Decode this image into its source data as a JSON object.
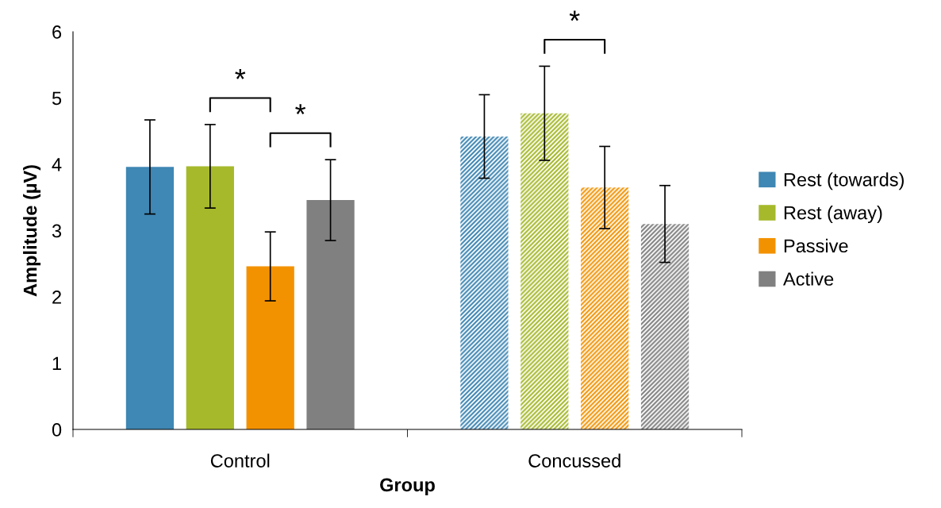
{
  "chart_data": {
    "type": "bar",
    "xlabel": "Group",
    "ylabel": "Amplitude (µV)",
    "categories": [
      "Control",
      "Concussed"
    ],
    "series": [
      {
        "name": "Rest (towards)",
        "color": "#3f87b4",
        "values": [
          3.96,
          4.42
        ],
        "errors": [
          0.71,
          0.63
        ]
      },
      {
        "name": "Rest (away)",
        "color": "#a6b92b",
        "values": [
          3.97,
          4.77
        ],
        "errors": [
          0.63,
          0.71
        ]
      },
      {
        "name": "Passive",
        "color": "#f39200",
        "values": [
          2.46,
          3.65
        ],
        "errors": [
          0.52,
          0.62
        ]
      },
      {
        "name": "Active",
        "color": "#808080",
        "values": [
          3.46,
          3.1
        ],
        "errors": [
          0.61,
          0.58
        ]
      }
    ],
    "ylim": [
      0,
      6
    ],
    "yticks": [
      0,
      1,
      2,
      3,
      4,
      5,
      6
    ],
    "grid": false,
    "legend": "right",
    "annotations": [
      "*",
      "*",
      "*"
    ]
  }
}
